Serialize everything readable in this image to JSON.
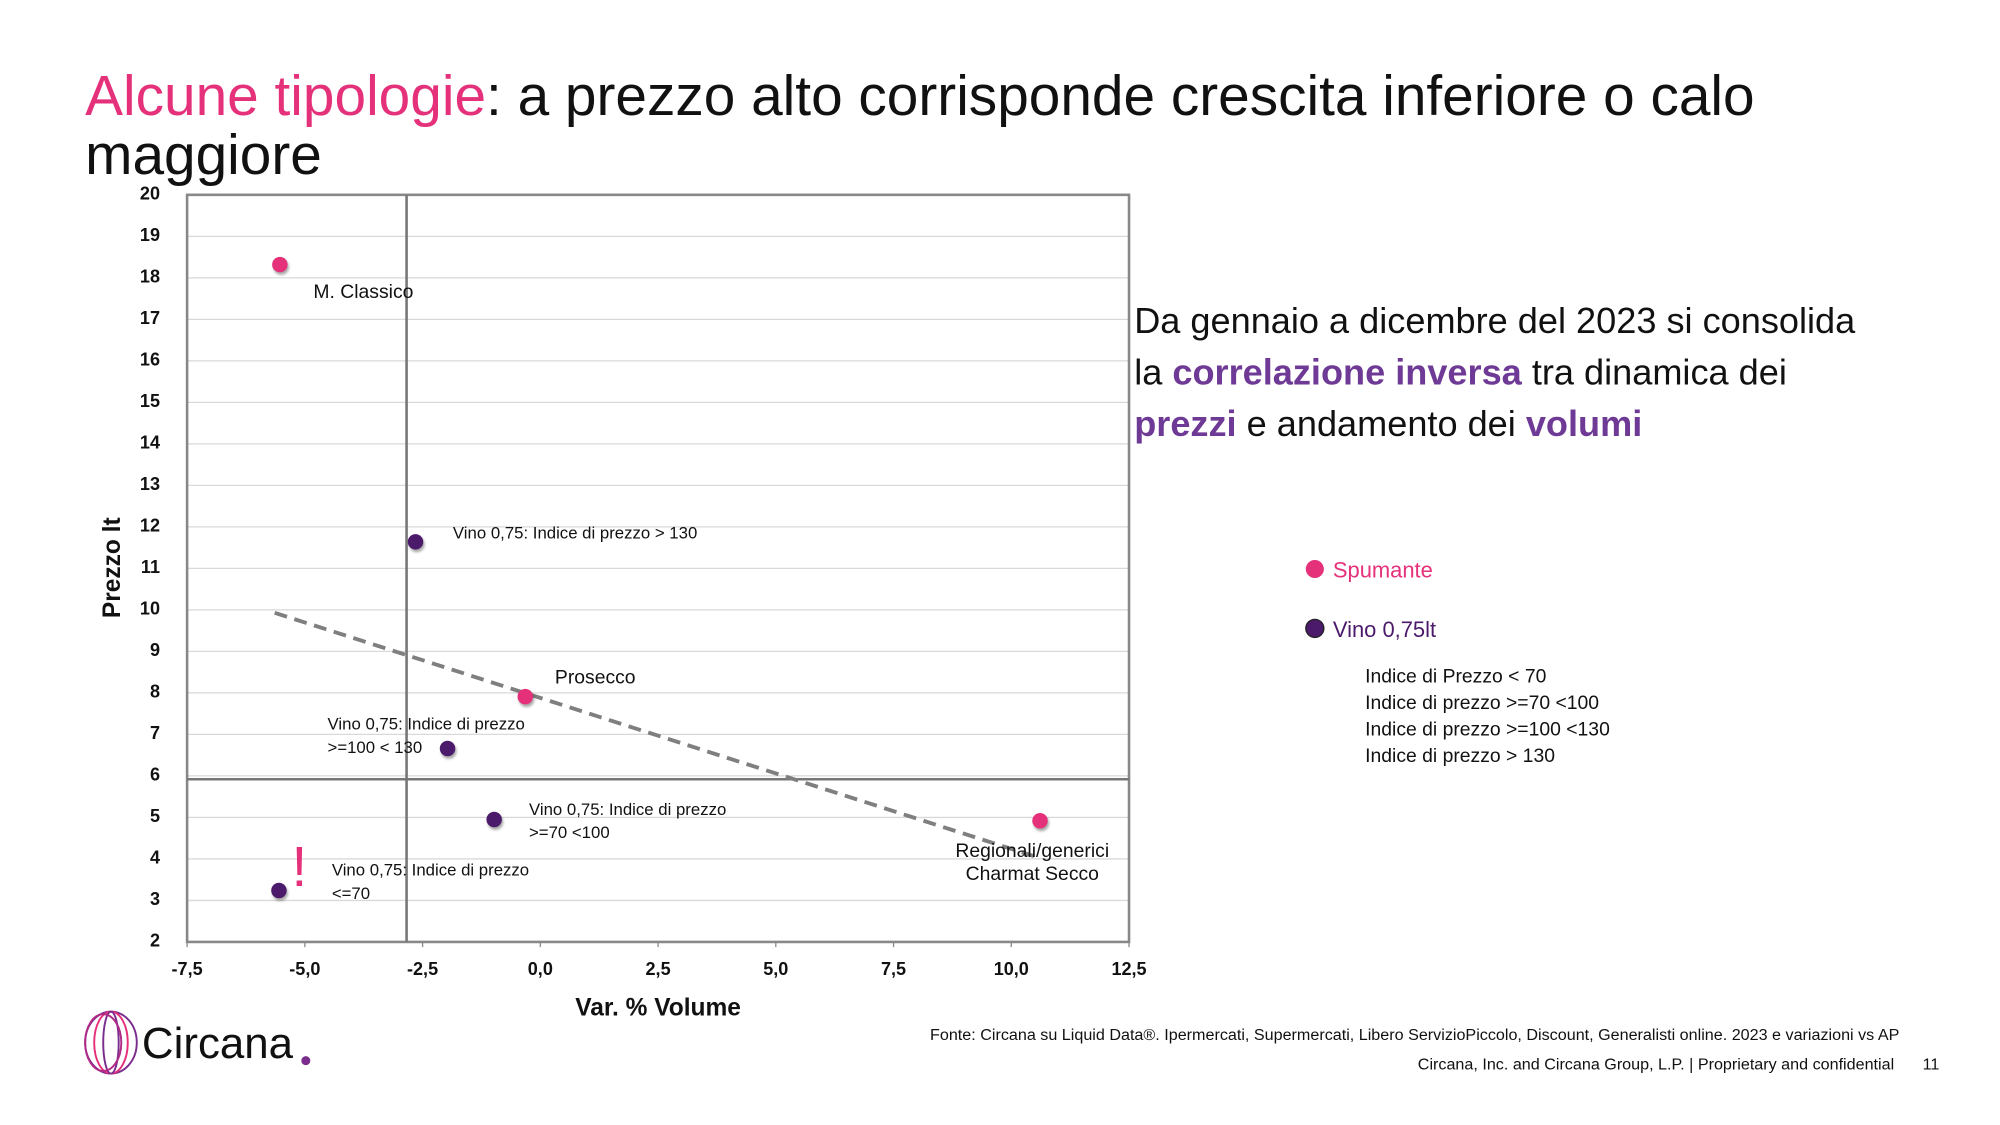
{
  "title": {
    "highlight": "Alcune tipologie",
    "rest": ": a prezzo alto corrisponde crescita inferiore o calo maggiore"
  },
  "chart_data": {
    "type": "scatter",
    "x_label": "Var. % Volume",
    "y_label": "Prezzo lt",
    "xlim": [
      -7.5,
      12.5
    ],
    "xticks": [
      {
        "value": -7.5,
        "label": "-7,5"
      },
      {
        "value": -5,
        "label": "-5,0"
      },
      {
        "value": -2.5,
        "label": "-2,5"
      },
      {
        "value": 0,
        "label": "0,0"
      },
      {
        "value": 2.5,
        "label": "2,5"
      },
      {
        "value": 5,
        "label": "5,0"
      },
      {
        "value": 7.5,
        "label": "7,5"
      },
      {
        "value": 10,
        "label": "10,0"
      },
      {
        "value": 12.5,
        "label": "12,5"
      }
    ],
    "ylim": [
      2,
      20
    ],
    "yticks": [
      2,
      3,
      4,
      5,
      6,
      7,
      8,
      9,
      10,
      11,
      12,
      13,
      14,
      15,
      16,
      17,
      18,
      19,
      20
    ],
    "grid": "y",
    "series": [
      {
        "name": "Spumante",
        "color": "#e5307a",
        "x": [
          -5.53,
          -0.32,
          10.61
        ],
        "y": [
          18.32,
          7.91,
          4.92
        ],
        "labels": [
          [
            "M. Classico"
          ],
          [
            "Prosecco"
          ],
          [
            "Regionali/generici",
            "Charmat Secco"
          ]
        ]
      },
      {
        "name": "Vino 0,75lt",
        "color": "#4b1a6b",
        "x": [
          -2.65,
          -1.97,
          -0.98,
          -5.55
        ],
        "y": [
          11.64,
          6.66,
          4.95,
          3.24
        ],
        "labels": [
          [
            "Vino 0,75: Indice di prezzo > 130"
          ],
          [
            "Vino 0,75: Indice di prezzo",
            ">=100 < 130"
          ],
          [
            "Vino 0,75: Indice di prezzo",
            ">=70 <100"
          ],
          [
            "Vino 0,75: Indice di prezzo",
            "<=70"
          ]
        ]
      }
    ],
    "reference_lines": {
      "x": -2.84,
      "y": 5.92
    },
    "trendline": {
      "x": [
        -5.64,
        10.61
      ],
      "y": [
        9.93,
        4.02
      ]
    },
    "annotation": "!",
    "legend_notes": [
      "Indice di Prezzo < 70",
      "Indice di prezzo >=70 <100",
      "Indice di prezzo >=100 <130",
      "Indice di prezzo > 130"
    ]
  },
  "commentary": [
    [
      {
        "text": "Da gennaio a dicembre del 2023 si consolida",
        "bold": false
      }
    ],
    [
      {
        "text": "la ",
        "bold": false
      },
      {
        "text": "correlazione inversa",
        "bold": true
      },
      {
        "text": " tra dinamica dei",
        "bold": false
      }
    ],
    [
      {
        "text": "prezzi",
        "bold": true
      },
      {
        "text": " e andamento dei ",
        "bold": false
      },
      {
        "text": "volumi",
        "bold": true
      }
    ]
  ],
  "footer": {
    "source": "Fonte: Circana su Liquid Data®.  Ipermercati, Supermercati, Libero ServizioPiccolo, Discount, Generalisti online. 2023 e variazioni vs AP",
    "copyright": "Circana, Inc. and Circana Group, L.P. |  Proprietary and confidential",
    "page": "11",
    "logo": "Circana"
  }
}
